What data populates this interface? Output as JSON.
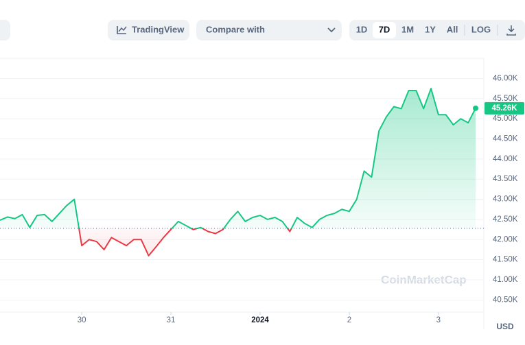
{
  "toolbar": {
    "chart_button": "TradingView",
    "compare": "Compare with",
    "ranges": [
      "1D",
      "7D",
      "1M",
      "1Y",
      "All"
    ],
    "active_range": "7D",
    "log_button": "LOG"
  },
  "chart_data": {
    "type": "line",
    "categories": [
      null,
      null,
      null,
      null,
      null,
      null,
      null,
      null,
      null,
      null,
      null,
      "30",
      null,
      null,
      null,
      null,
      null,
      null,
      null,
      null,
      null,
      null,
      null,
      "31",
      null,
      null,
      null,
      null,
      null,
      null,
      null,
      null,
      null,
      null,
      null,
      "2024",
      null,
      null,
      null,
      null,
      null,
      null,
      null,
      null,
      null,
      null,
      null,
      "2",
      null,
      null,
      null,
      null,
      null,
      null,
      null,
      null,
      null,
      null,
      null,
      "3",
      null,
      null,
      null,
      null,
      null
    ],
    "values": [
      42480,
      42560,
      42520,
      42620,
      42300,
      42600,
      42620,
      42450,
      42650,
      42850,
      43000,
      41850,
      42000,
      41950,
      41750,
      42050,
      41950,
      41850,
      42000,
      42000,
      41600,
      41820,
      42050,
      42250,
      42450,
      42350,
      42250,
      42300,
      42200,
      42150,
      42250,
      42500,
      42700,
      42450,
      42550,
      42600,
      42500,
      42550,
      42450,
      42200,
      42550,
      42400,
      42300,
      42500,
      42600,
      42650,
      42750,
      42700,
      43000,
      43700,
      43550,
      44700,
      45050,
      45300,
      45250,
      45700,
      45700,
      45250,
      45750,
      45100,
      45100,
      44850,
      45000,
      44900,
      45260
    ],
    "baseline": 42280,
    "up_color": "#16c784",
    "down_color": "#ea3943",
    "last_label": "45.26K",
    "ylim": [
      40200,
      46500
    ],
    "yticks": [
      {
        "value": 40500,
        "label": "40.50K"
      },
      {
        "value": 41000,
        "label": "41.00K"
      },
      {
        "value": 41500,
        "label": "41.50K"
      },
      {
        "value": 42000,
        "label": "42.00K"
      },
      {
        "value": 42500,
        "label": "42.50K"
      },
      {
        "value": 43000,
        "label": "43.00K"
      },
      {
        "value": 43500,
        "label": "43.50K"
      },
      {
        "value": 44000,
        "label": "44.00K"
      },
      {
        "value": 44500,
        "label": "44.50K"
      },
      {
        "value": 45000,
        "label": "45.00K"
      },
      {
        "value": 45500,
        "label": "45.50K"
      },
      {
        "value": 46000,
        "label": "46.00K"
      }
    ],
    "grid": true,
    "unit_label": "USD",
    "watermark": "CoinMarketCap"
  }
}
